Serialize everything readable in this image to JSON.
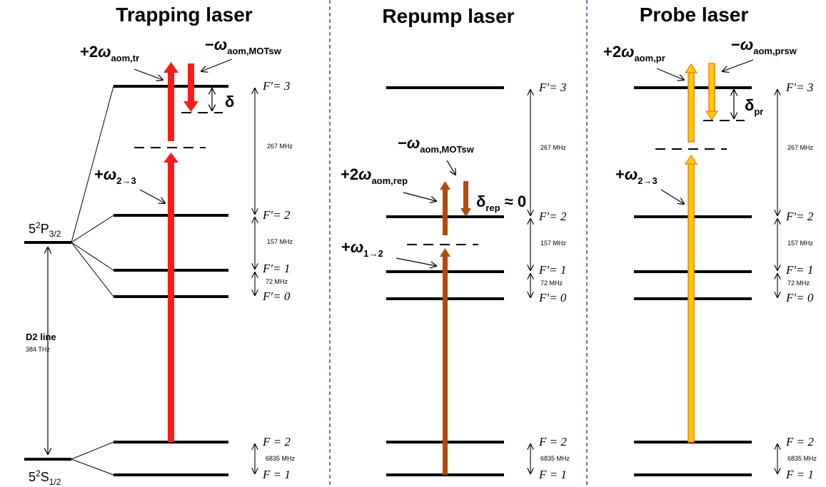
{
  "panels": {
    "trapping": {
      "title": "Trapping laser",
      "plus": "+2",
      "plus_sub": "aom,tr",
      "minus": "−",
      "minus_sub": "aom,MOTsw",
      "detuning": "δ",
      "omega_sym": "ω",
      "trans": "+",
      "trans_sub": "2→3"
    },
    "repump": {
      "title": "Repump laser",
      "plus": "+2",
      "plus_sub": "aom,rep",
      "minus": "−",
      "minus_sub": "aom,MOTsw",
      "detuning": "δ",
      "detuning_sub": "rep",
      "detuning_value": " ≈ 0",
      "omega_sym": "ω",
      "trans": "+",
      "trans_sub": "1→2"
    },
    "probe": {
      "title": "Probe laser",
      "plus": "+2",
      "plus_sub": "aom,pr",
      "minus": "−",
      "minus_sub": "aom,prsw",
      "detuning": "δ",
      "detuning_sub": "pr",
      "omega_sym": "ω",
      "trans": "+",
      "trans_sub": "2→3"
    }
  },
  "levels": {
    "F3": "F′= 3",
    "F2e": "F′= 2",
    "F1e": "F′= 1",
    "F0": "F′= 0",
    "F2g": "F = 2",
    "F1g": "F = 1"
  },
  "spacings": {
    "s32": "267 MHz",
    "s21": "157 MHz",
    "s10": "72 MHz",
    "ground": "6835 MHz"
  },
  "states": {
    "excited": "5",
    "excited_sup": "2",
    "excited_rest": "P",
    "excited_sub": "3/2",
    "ground": "5",
    "ground_sup": "2",
    "ground_rest": "S",
    "ground_sub": "1/2"
  },
  "d2": {
    "label": "D2 line",
    "freq": "384 THz"
  },
  "colors": {
    "trapping": "#ff1a1a",
    "repump": "#b24a10",
    "probe_fill": "#ffcc00",
    "probe_edge": "#ff7a1a",
    "separator": "#2a4a8c"
  }
}
